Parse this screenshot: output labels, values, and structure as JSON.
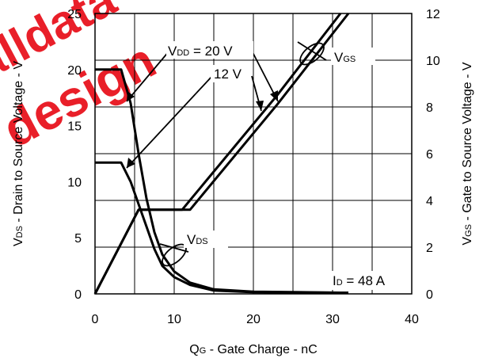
{
  "chart_data": {
    "type": "line",
    "xlabel": {
      "main": "Q",
      "sub": "G",
      "rest": " - Gate Charge - nC"
    },
    "ylabel": {
      "main": "V",
      "sub": "DS",
      "rest": " - Drain to Source Voltage - V"
    },
    "y2label": {
      "main": "V",
      "sub": "GS",
      "rest": " - Gate to Source Voltage - V"
    },
    "xlim": [
      0,
      40
    ],
    "ylim": [
      0,
      25
    ],
    "y2lim": [
      0,
      12
    ],
    "xticks": [
      "0",
      "10",
      "20",
      "30",
      "40"
    ],
    "yticks": [
      "0",
      "5",
      "10",
      "15",
      "20",
      "25"
    ],
    "y2ticks": [
      "0",
      "2",
      "4",
      "6",
      "8",
      "10",
      "12"
    ],
    "grid": true,
    "series": [
      {
        "name": "VDS @ VDD = 20 V",
        "axis": "left",
        "x": [
          0,
          3.3,
          4.5,
          5.5,
          6.5,
          7.5,
          8.5,
          10,
          12,
          15,
          20,
          32
        ],
        "y": [
          20,
          20,
          17,
          12.5,
          8.5,
          5.5,
          3.5,
          2,
          1,
          0.4,
          0.2,
          0.1
        ]
      },
      {
        "name": "VDS @ VDD = 12 V",
        "axis": "left",
        "x": [
          0,
          3.3,
          4.5,
          6.5,
          7.5,
          8.5,
          10,
          12,
          15,
          20,
          32
        ],
        "y": [
          11.7,
          11.7,
          10,
          6,
          4,
          2.5,
          1.5,
          0.8,
          0.3,
          0.15,
          0.1
        ]
      },
      {
        "name": "VGS @ VDD = 20 V",
        "axis": "right",
        "x": [
          0,
          5.5,
          12,
          23,
          32
        ],
        "y": [
          0,
          3.6,
          3.6,
          8.1,
          12
        ]
      },
      {
        "name": "VGS @ VDD = 12 V",
        "axis": "right",
        "x": [
          0,
          5.5,
          11,
          23,
          31
        ],
        "y": [
          0,
          3.6,
          3.6,
          8.5,
          12
        ]
      }
    ],
    "annotations": {
      "vdd20": {
        "main": "V",
        "sub": "DD",
        "rest": " = 20 V"
      },
      "vdd12": "12 V",
      "vgs": {
        "main": "V",
        "sub": "GS"
      },
      "vds": {
        "main": "V",
        "sub": "DS"
      },
      "id": {
        "main": "I",
        "sub": "D",
        "rest": " = 48 A"
      }
    },
    "colors": {
      "curve": "#000000",
      "grid": "#000000",
      "watermark": "#e8141e"
    }
  },
  "watermark": {
    "line1": "alldatasheet",
    "line2": "udesign"
  }
}
